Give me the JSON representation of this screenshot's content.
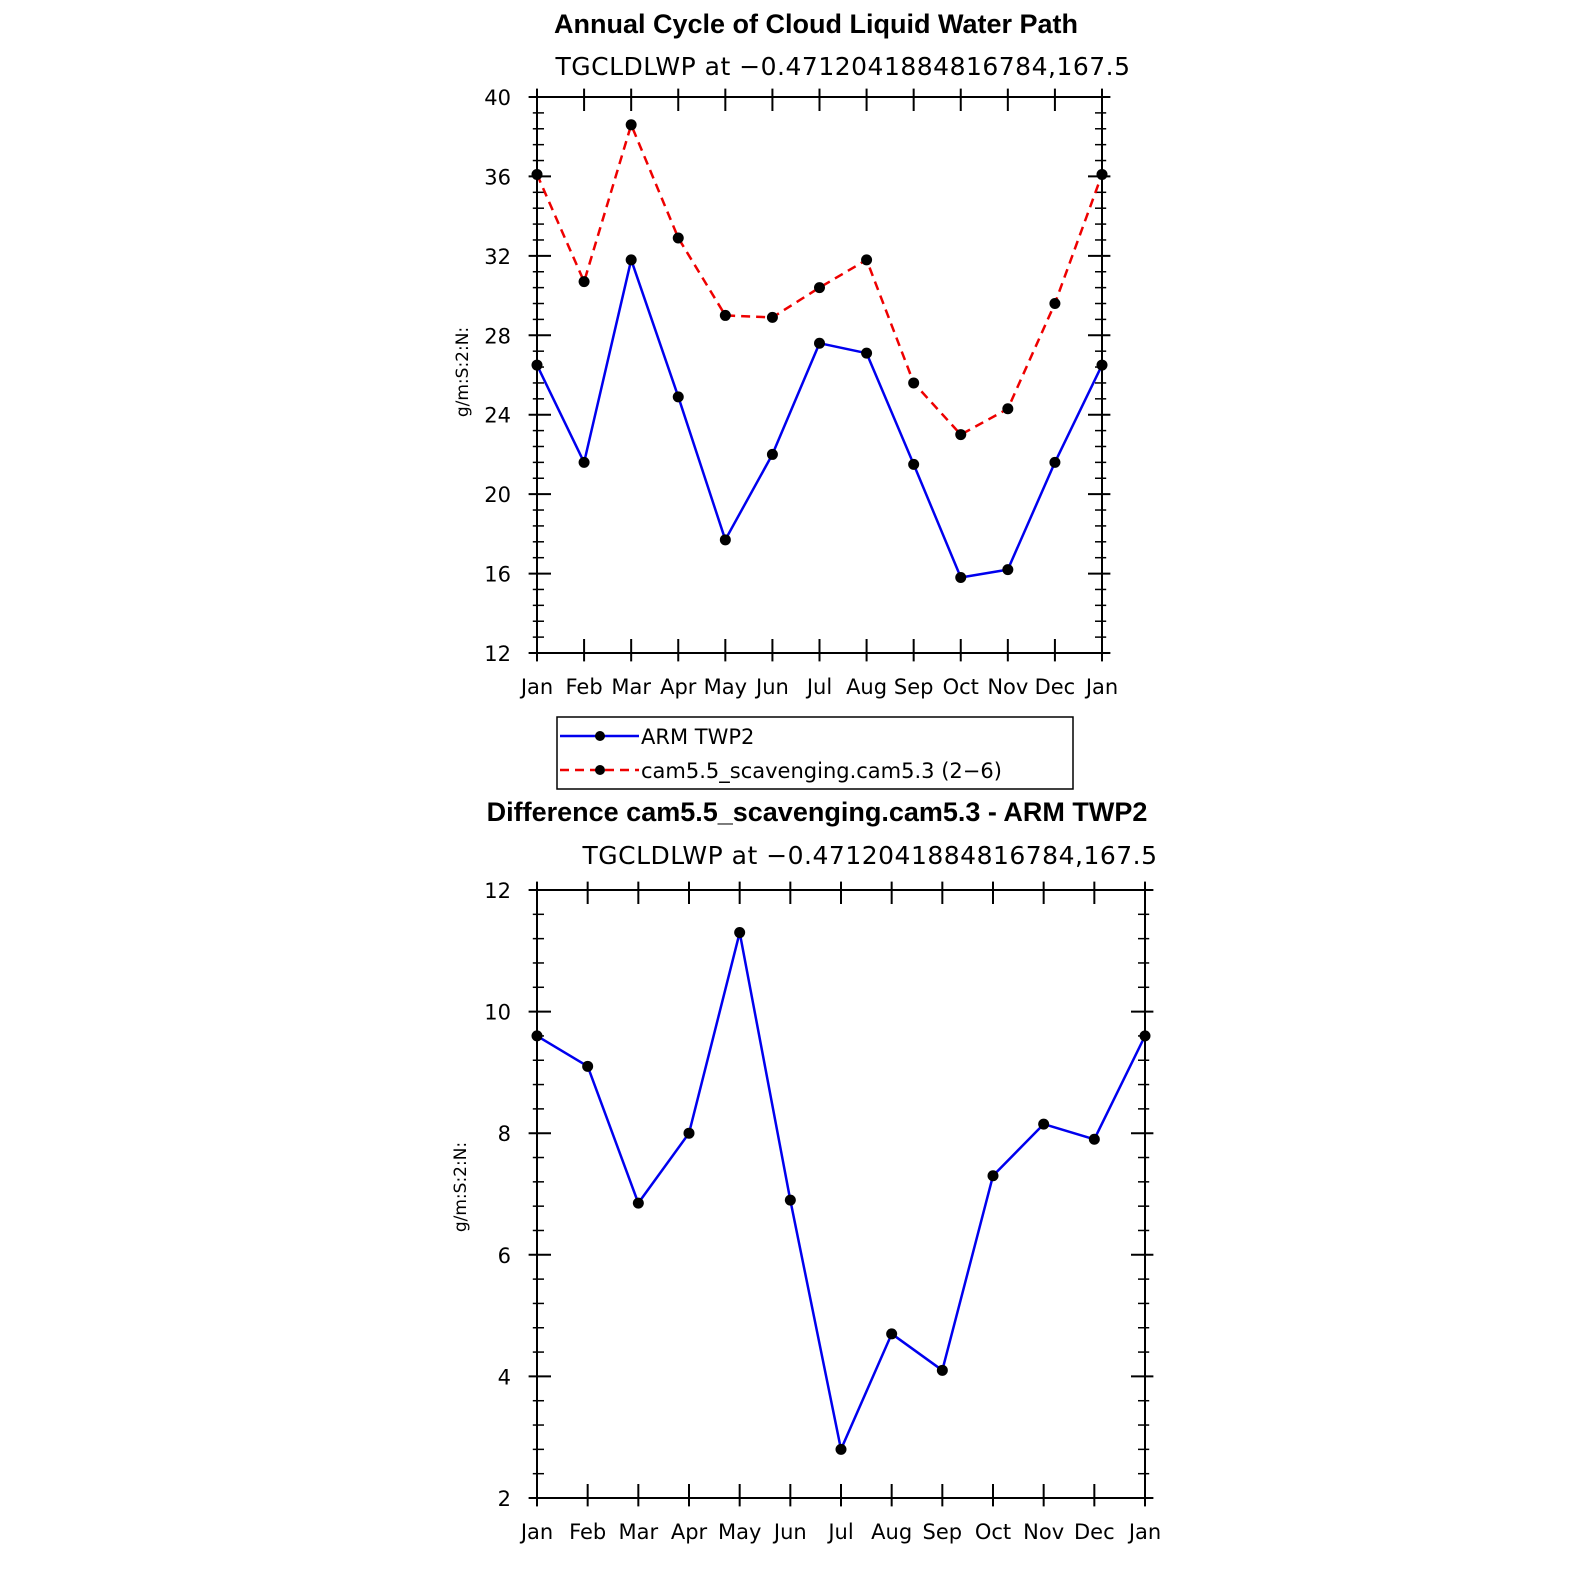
{
  "chart_data": [
    {
      "type": "line",
      "title": "Annual Cycle of Cloud Liquid Water Path",
      "subtitle": "TGCLDLWP at −0.4712041884816784,167.5",
      "ylabel": "g/m:S:2:N:",
      "xlabel": "",
      "categories": [
        "Jan",
        "Feb",
        "Mar",
        "Apr",
        "May",
        "Jun",
        "Jul",
        "Aug",
        "Sep",
        "Oct",
        "Nov",
        "Dec",
        "Jan"
      ],
      "yticks": [
        12,
        16,
        20,
        24,
        28,
        32,
        36,
        40
      ],
      "ylim": [
        12,
        40
      ],
      "series": [
        {
          "name": "ARM TWP2",
          "color": "#0000ee",
          "dash": "solid",
          "values": [
            26.5,
            21.6,
            31.8,
            24.9,
            17.7,
            22.0,
            27.6,
            27.1,
            21.5,
            15.8,
            16.2,
            21.6,
            26.5
          ]
        },
        {
          "name": "cam5.5_scavenging.cam5.3 (2−6)",
          "color": "#ee0000",
          "dash": "dashed",
          "values": [
            36.1,
            30.7,
            38.6,
            32.9,
            29.0,
            28.9,
            30.4,
            31.8,
            25.6,
            23.0,
            24.3,
            29.6,
            36.1
          ]
        }
      ],
      "legend": {
        "location": "below",
        "entries": [
          "ARM TWP2",
          "cam5.5_scavenging.cam5.3 (2−6)"
        ]
      }
    },
    {
      "type": "line",
      "title": "Difference cam5.5_scavenging.cam5.3 - ARM TWP2",
      "subtitle": "TGCLDLWP at −0.4712041884816784,167.5",
      "ylabel": "g/m:S:2:N:",
      "xlabel": "",
      "categories": [
        "Jan",
        "Feb",
        "Mar",
        "Apr",
        "May",
        "Jun",
        "Jul",
        "Aug",
        "Sep",
        "Oct",
        "Nov",
        "Dec",
        "Jan"
      ],
      "yticks": [
        2,
        4,
        6,
        8,
        10,
        12
      ],
      "ylim": [
        2,
        12
      ],
      "series": [
        {
          "name": "Difference",
          "color": "#0000ee",
          "dash": "solid",
          "values": [
            9.6,
            9.1,
            6.85,
            8.0,
            11.3,
            6.9,
            2.8,
            4.7,
            4.1,
            7.3,
            8.15,
            7.9,
            9.6
          ]
        }
      ]
    }
  ]
}
